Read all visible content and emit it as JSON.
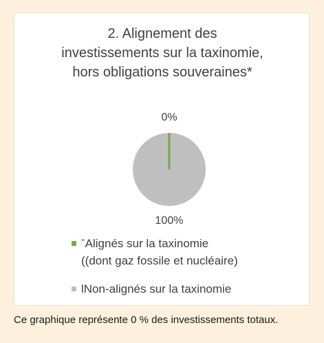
{
  "chart_data": {
    "type": "pie",
    "title": [
      "2.  Alignement des",
      "investissements sur la taxinomie,",
      "hors obligations souveraines*"
    ],
    "categories": [
      "ˉAlignés sur la taxinomie\n((dont gaz fossile et nucléaire)",
      "lNon-alignés sur la taxinomie"
    ],
    "values": [
      0,
      100
    ],
    "value_labels": [
      "0%",
      "100%"
    ],
    "colors": [
      "#70ad47",
      "#bfbfbf"
    ]
  },
  "note": "Ce graphique représente 0 % des investissements totaux."
}
